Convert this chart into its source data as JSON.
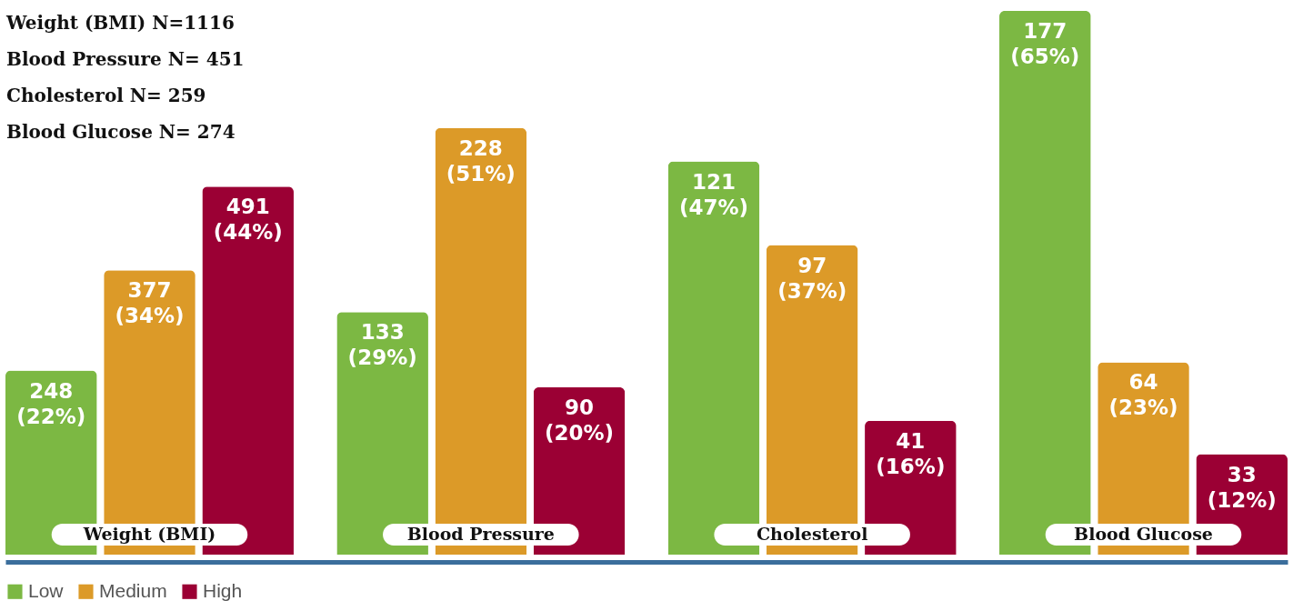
{
  "chart_data": {
    "type": "bar",
    "categories": [
      "Weight (BMI)",
      "Blood Pressure",
      "Cholesterol",
      "Blood Glucose"
    ],
    "series": [
      {
        "name": "Low",
        "color": "#7cb843",
        "values": [
          22,
          29,
          47,
          65
        ],
        "value_labels": [
          "248 (22%)",
          "133 (29%)",
          "121 (47%)",
          "177 (65%)"
        ]
      },
      {
        "name": "Medium",
        "color": "#dc9a28",
        "values": [
          34,
          51,
          37,
          23
        ],
        "value_labels": [
          "377 (34%)",
          "228 (51%)",
          "97 (37%)",
          "64 (23%)"
        ]
      },
      {
        "name": "High",
        "color": "#9b0034",
        "values": [
          44,
          20,
          16,
          12
        ],
        "value_labels": [
          "491 (44%)",
          "90 (20%)",
          "41 (16%)",
          "33 (12%)"
        ]
      }
    ],
    "legend": "bottom",
    "annotations": [
      "Weight (BMI) N=1116",
      "Blood Pressure N= 451",
      "Cholesterol N= 259",
      "Blood Glucose N= 274"
    ]
  }
}
